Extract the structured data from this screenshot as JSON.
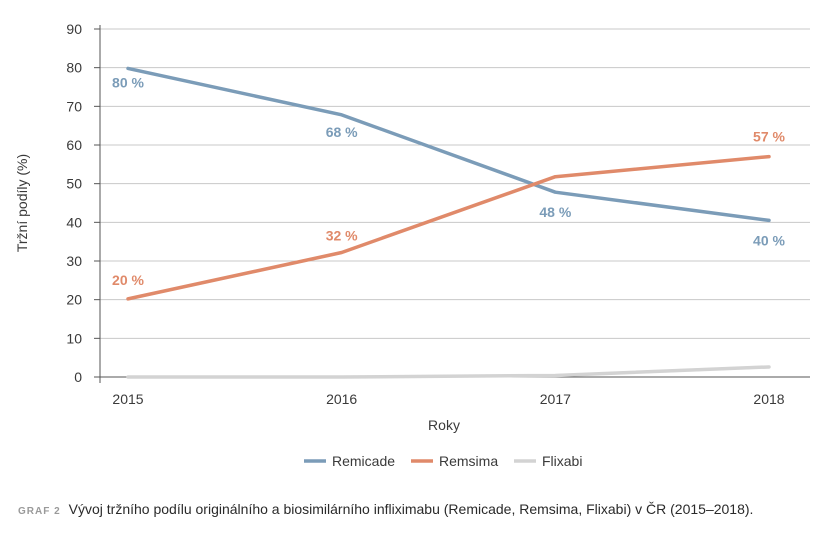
{
  "chart_data": {
    "type": "line",
    "categories": [
      "2015",
      "2016",
      "2017",
      "2018"
    ],
    "series": [
      {
        "name": "Remicade",
        "values": [
          79.8,
          67.8,
          47.8,
          40.5
        ],
        "labels": [
          "80 %",
          "68 %",
          "48 %",
          "40 %"
        ],
        "color": "#7b9cb8"
      },
      {
        "name": "Remsima",
        "values": [
          20.2,
          32.2,
          51.8,
          57.0
        ],
        "labels": [
          "20 %",
          "32 %",
          "",
          "57 %"
        ],
        "color": "#e08a6a"
      },
      {
        "name": "Flixabi",
        "values": [
          0,
          0,
          0.4,
          2.6
        ],
        "labels": [
          "",
          "",
          "",
          ""
        ],
        "color": "#d3d3d3"
      }
    ],
    "xlabel": "Roky",
    "ylabel": "Tržní podíly (%)",
    "ylim": [
      0,
      90
    ],
    "yticks": [
      "0",
      "10",
      "20",
      "30",
      "40",
      "50",
      "60",
      "70",
      "80",
      "90"
    ],
    "grid": true,
    "legend_position": "bottom"
  },
  "caption": {
    "tag": "GRAF 2",
    "text": "Vývoj tržního podílu originálního a biosimilárního infliximabu (Remicade, Remsima, Flixabi) v ČR (2015–2018)."
  }
}
